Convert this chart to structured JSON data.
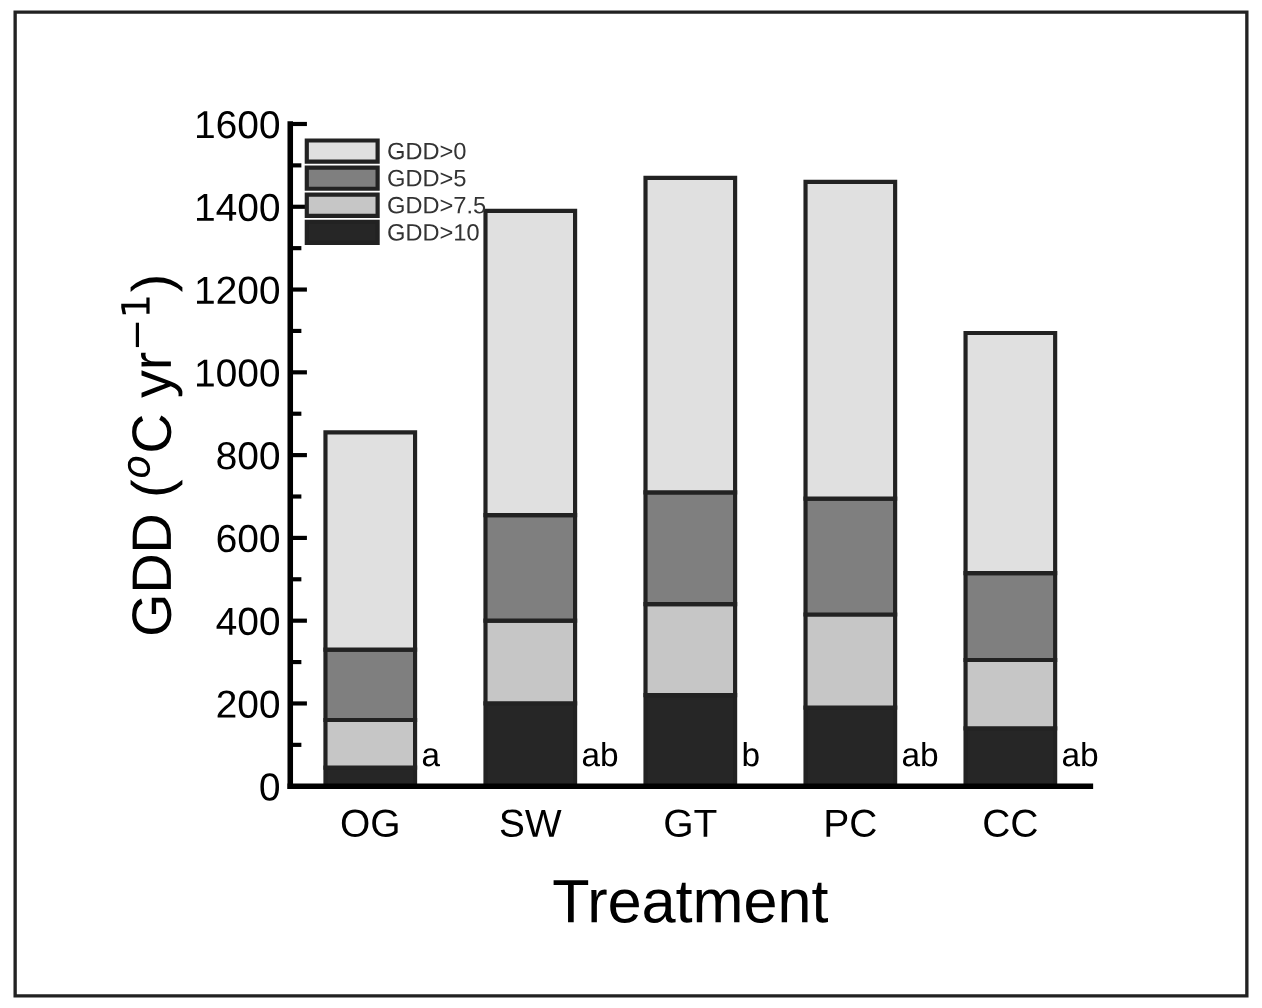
{
  "chart_data": {
    "type": "bar",
    "stacked": true,
    "xlabel": "Treatment",
    "ylabel": "GDD ($^{o}$C yr$^{−1}$)",
    "categories": [
      "OG",
      "SW",
      "GT",
      "PC",
      "CC"
    ],
    "series": [
      {
        "name": "GDD>10",
        "color": "#262626",
        "values": [
          45,
          200,
          220,
          190,
          140
        ]
      },
      {
        "name": "GDD>7.5",
        "color": "#c6c6c6",
        "values": [
          115,
          200,
          220,
          225,
          165
        ]
      },
      {
        "name": "GDD>5",
        "color": "#7f7f7f",
        "values": [
          170,
          255,
          270,
          280,
          210
        ]
      },
      {
        "name": "GDD>0",
        "color": "#e0e0e0",
        "values": [
          525,
          735,
          760,
          765,
          580
        ]
      }
    ],
    "ylim": [
      0,
      1600
    ],
    "yticks": [
      0,
      200,
      400,
      600,
      800,
      1000,
      1200,
      1400,
      1600
    ],
    "grid": false,
    "legend": "top left",
    "annotations": [
      "a",
      "ab",
      "b",
      "ab",
      "ab"
    ]
  }
}
